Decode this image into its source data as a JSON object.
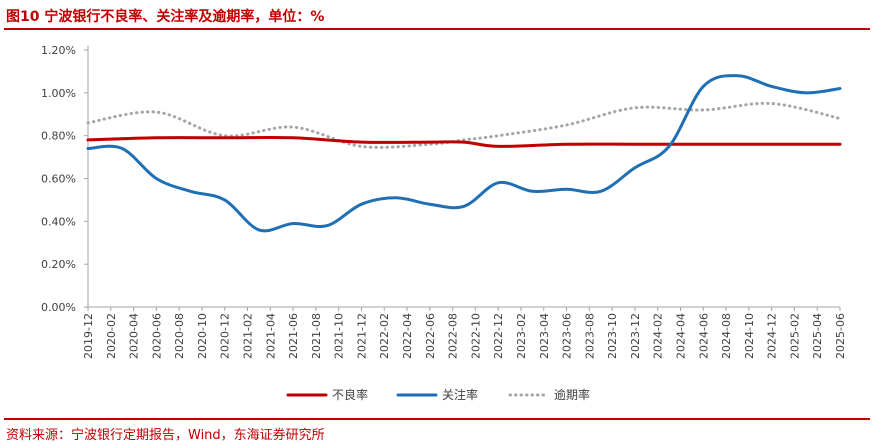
{
  "figure": {
    "title": "图10  宁波银行不良率、关注率及逾期率，单位：%",
    "source": "资料来源：宁波银行定期报告，Wind，东海证券研究所"
  },
  "chart_data": {
    "type": "line",
    "title": "图10  宁波银行不良率、关注率及逾期率，单位：%",
    "xlabel": "",
    "ylabel": "",
    "ylim": [
      0,
      1.2
    ],
    "y_ticks": [
      "0.00%",
      "0.20%",
      "0.40%",
      "0.60%",
      "0.80%",
      "1.00%",
      "1.20%"
    ],
    "grid": false,
    "legend_position": "bottom",
    "x": [
      "2019-12",
      "2020-02",
      "2020-04",
      "2020-06",
      "2020-08",
      "2020-10",
      "2020-12",
      "2021-02",
      "2021-04",
      "2021-06",
      "2021-08",
      "2021-10",
      "2021-12",
      "2022-02",
      "2022-04",
      "2022-06",
      "2022-08",
      "2022-10",
      "2022-12",
      "2023-02",
      "2023-04",
      "2023-06",
      "2023-08",
      "2023-10",
      "2023-12",
      "2024-02",
      "2024-04",
      "2024-06",
      "2024-08",
      "2024-10",
      "2024-12",
      "2025-02",
      "2025-04",
      "2025-06"
    ],
    "series": [
      {
        "name": "不良率",
        "color": "#c00000",
        "style": "solid",
        "points": [
          [
            "2019-12",
            0.78
          ],
          [
            "2020-06",
            0.79
          ],
          [
            "2020-12",
            0.79
          ],
          [
            "2021-06",
            0.79
          ],
          [
            "2021-12",
            0.77
          ],
          [
            "2022-06",
            0.77
          ],
          [
            "2022-09",
            0.77
          ],
          [
            "2022-12",
            0.75
          ],
          [
            "2023-06",
            0.76
          ],
          [
            "2023-12",
            0.76
          ],
          [
            "2024-06",
            0.76
          ],
          [
            "2024-12",
            0.76
          ],
          [
            "2025-06",
            0.76
          ]
        ]
      },
      {
        "name": "关注率",
        "color": "#1f6fb4",
        "style": "solid",
        "points": [
          [
            "2019-12",
            0.74
          ],
          [
            "2020-03",
            0.74
          ],
          [
            "2020-06",
            0.6
          ],
          [
            "2020-09",
            0.54
          ],
          [
            "2020-12",
            0.5
          ],
          [
            "2021-03",
            0.36
          ],
          [
            "2021-06",
            0.39
          ],
          [
            "2021-09",
            0.38
          ],
          [
            "2021-12",
            0.48
          ],
          [
            "2022-03",
            0.51
          ],
          [
            "2022-06",
            0.48
          ],
          [
            "2022-09",
            0.47
          ],
          [
            "2022-12",
            0.58
          ],
          [
            "2023-03",
            0.54
          ],
          [
            "2023-06",
            0.55
          ],
          [
            "2023-09",
            0.54
          ],
          [
            "2023-12",
            0.65
          ],
          [
            "2024-03",
            0.75
          ],
          [
            "2024-06",
            1.03
          ],
          [
            "2024-09",
            1.08
          ],
          [
            "2024-12",
            1.03
          ],
          [
            "2025-03",
            1.0
          ],
          [
            "2025-06",
            1.02
          ]
        ]
      },
      {
        "name": "逾期率",
        "color": "#a6a6a6",
        "style": "dotted",
        "points": [
          [
            "2019-12",
            0.86
          ],
          [
            "2020-06",
            0.91
          ],
          [
            "2020-12",
            0.8
          ],
          [
            "2021-06",
            0.84
          ],
          [
            "2021-12",
            0.75
          ],
          [
            "2022-06",
            0.76
          ],
          [
            "2022-09",
            0.78
          ],
          [
            "2022-12",
            0.8
          ],
          [
            "2023-06",
            0.85
          ],
          [
            "2023-12",
            0.93
          ],
          [
            "2024-06",
            0.92
          ],
          [
            "2024-12",
            0.95
          ],
          [
            "2025-06",
            0.88
          ]
        ]
      }
    ]
  }
}
